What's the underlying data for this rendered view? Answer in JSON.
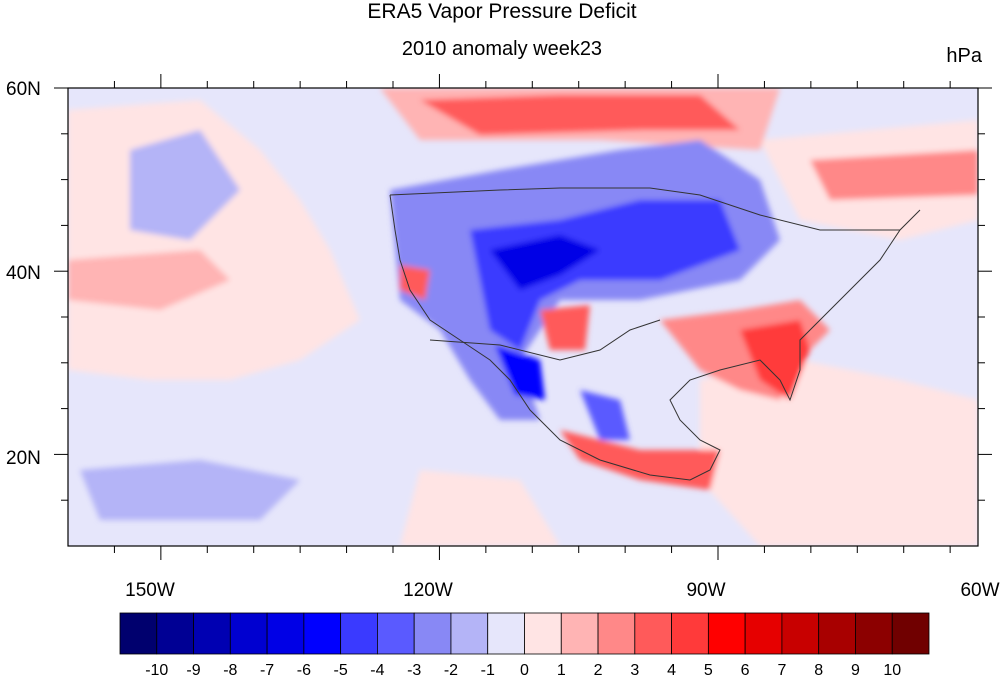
{
  "title": "ERA5 Vapor Pressure Deficit",
  "subtitle": "2010 anomaly week23",
  "units": "hPa",
  "map": {
    "lat_labels": [
      "60N",
      "40N",
      "20N"
    ],
    "lon_labels": [
      "150W",
      "120W",
      "90W",
      "60W"
    ],
    "lat_range": [
      10,
      60
    ],
    "lon_range": [
      -160,
      -62
    ]
  },
  "colorbar": {
    "labels": [
      "-10",
      "-9",
      "-8",
      "-7",
      "-6",
      "-5",
      "-4",
      "-3",
      "-2",
      "-1",
      "0",
      "1",
      "2",
      "3",
      "4",
      "5",
      "6",
      "7",
      "8",
      "9",
      "10"
    ],
    "colors": [
      "#00006e",
      "#000094",
      "#0000b2",
      "#0000d0",
      "#0000e6",
      "#0000ff",
      "#3a3aff",
      "#5a5aff",
      "#8888f5",
      "#b4b4f7",
      "#e6e6fb",
      "#ffe4e4",
      "#ffb4b4",
      "#ff8888",
      "#ff5a5a",
      "#ff3a3a",
      "#ff0000",
      "#e60000",
      "#c80000",
      "#a80000",
      "#8c0000",
      "#700000"
    ]
  }
}
